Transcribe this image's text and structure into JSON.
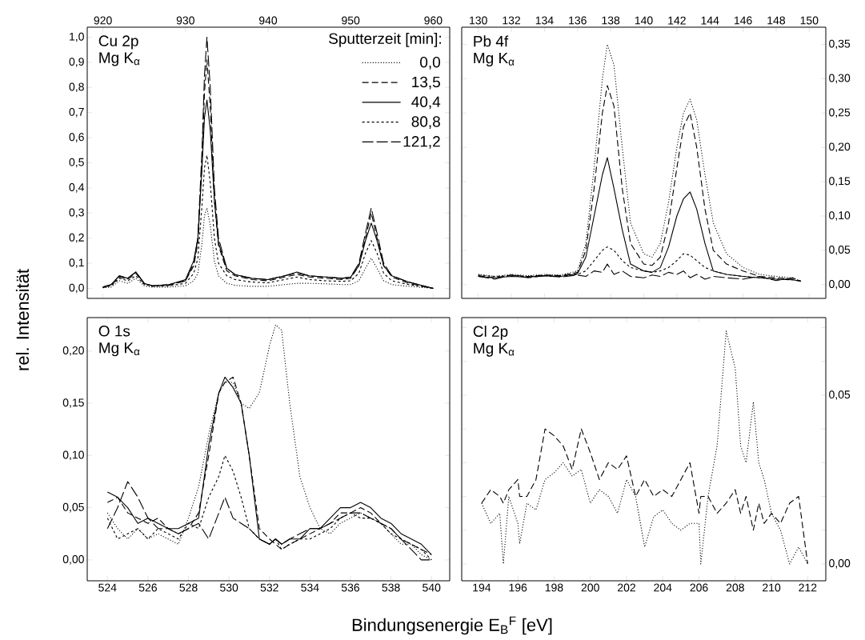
{
  "chart_data": [
    {
      "type": "line",
      "ylabel": "rel. Intensität",
      "annotations": [
        "Cu 2p",
        "Mg K$_{α}$"
      ],
      "legend_title": "Sputterzeit [min]:",
      "legend": "top right",
      "xlim": [
        918.1,
        962.0
      ],
      "ylim": [
        -0.04,
        1.04
      ],
      "xticks": [
        920,
        930,
        940,
        950,
        960
      ],
      "yticks": [
        {
          "value": 0,
          "label": "0,0"
        },
        {
          "value": 0.1,
          "label": "0,1"
        },
        {
          "value": 0.2,
          "label": "0,2"
        },
        {
          "value": 0.3,
          "label": "0,3"
        },
        {
          "value": 0.4,
          "label": "0,4"
        },
        {
          "value": 0.5,
          "label": "0,5"
        },
        {
          "value": 0.6,
          "label": "0,6"
        },
        {
          "value": 0.7,
          "label": "0,7"
        },
        {
          "value": 0.8,
          "label": "0,8"
        },
        {
          "value": 0.9,
          "label": "0,9"
        },
        {
          "value": 1.0,
          "label": "1,0"
        }
      ],
      "x": [
        920,
        921,
        922,
        923,
        924,
        925,
        926,
        928,
        930,
        931,
        931.5,
        932,
        932.3,
        932.6,
        933,
        933.5,
        934,
        935,
        936,
        938,
        940,
        942,
        943.5,
        945,
        947,
        949,
        950,
        951,
        951.8,
        952.5,
        953.2,
        954,
        955,
        957,
        960
      ],
      "series": [
        {
          "name": "0,0",
          "color": "#000000",
          "line_style": "dotted",
          "values": [
            0.002,
            0.005,
            0.03,
            0.02,
            0.04,
            0.01,
            0.005,
            0.005,
            0.01,
            0.03,
            0.06,
            0.18,
            0.29,
            0.32,
            0.25,
            0.11,
            0.05,
            0.02,
            0.012,
            0.008,
            0.008,
            0.015,
            0.02,
            0.02,
            0.018,
            0.015,
            0.015,
            0.03,
            0.08,
            0.12,
            0.08,
            0.03,
            0.015,
            0.008,
            0.0
          ]
        },
        {
          "name": "13,5",
          "color": "#000000",
          "line_style": "dashed",
          "values": [
            0.005,
            0.012,
            0.045,
            0.035,
            0.06,
            0.018,
            0.01,
            0.012,
            0.03,
            0.09,
            0.18,
            0.5,
            0.78,
            0.91,
            0.72,
            0.35,
            0.17,
            0.07,
            0.05,
            0.035,
            0.03,
            0.045,
            0.055,
            0.045,
            0.04,
            0.035,
            0.04,
            0.09,
            0.2,
            0.3,
            0.2,
            0.09,
            0.045,
            0.02,
            0.0
          ]
        },
        {
          "name": "40,4",
          "color": "#000000",
          "line_style": "solid",
          "values": [
            0.005,
            0.015,
            0.05,
            0.04,
            0.065,
            0.02,
            0.01,
            0.015,
            0.035,
            0.11,
            0.2,
            0.48,
            0.68,
            0.75,
            0.63,
            0.35,
            0.18,
            0.08,
            0.055,
            0.04,
            0.035,
            0.05,
            0.065,
            0.05,
            0.045,
            0.04,
            0.045,
            0.09,
            0.19,
            0.26,
            0.19,
            0.09,
            0.05,
            0.025,
            0.0
          ]
        },
        {
          "name": "80,8",
          "color": "#000000",
          "line_style": "dotted",
          "values": [
            0.003,
            0.01,
            0.04,
            0.03,
            0.05,
            0.015,
            0.008,
            0.01,
            0.02,
            0.06,
            0.12,
            0.33,
            0.48,
            0.53,
            0.42,
            0.2,
            0.1,
            0.05,
            0.035,
            0.025,
            0.022,
            0.035,
            0.045,
            0.035,
            0.03,
            0.028,
            0.03,
            0.06,
            0.14,
            0.19,
            0.14,
            0.06,
            0.03,
            0.015,
            0.0
          ]
        },
        {
          "name": "121,2",
          "color": "#000000",
          "line_style": "dashed",
          "values": [
            0.005,
            0.015,
            0.05,
            0.04,
            0.065,
            0.02,
            0.01,
            0.015,
            0.03,
            0.1,
            0.2,
            0.55,
            0.85,
            1.0,
            0.8,
            0.4,
            0.2,
            0.08,
            0.055,
            0.04,
            0.035,
            0.05,
            0.06,
            0.05,
            0.045,
            0.04,
            0.045,
            0.1,
            0.22,
            0.32,
            0.22,
            0.1,
            0.05,
            0.025,
            0.0
          ]
        }
      ]
    },
    {
      "type": "line",
      "annotations": [
        "Pb 4f",
        "Mg K$_{α}$"
      ],
      "xlim": [
        129.0,
        151.0
      ],
      "ylim": [
        -0.02,
        0.375
      ],
      "xticks": [
        130,
        132,
        134,
        136,
        138,
        140,
        142,
        144,
        146,
        148,
        150
      ],
      "yticks": [
        {
          "value": 0,
          "label": "0,00"
        },
        {
          "value": 0.05,
          "label": "0,05"
        },
        {
          "value": 0.1,
          "label": "0,10"
        },
        {
          "value": 0.15,
          "label": "0,15"
        },
        {
          "value": 0.2,
          "label": "0,20"
        },
        {
          "value": 0.25,
          "label": "0,25"
        },
        {
          "value": 0.3,
          "label": "0,30"
        },
        {
          "value": 0.35,
          "label": "0,35"
        }
      ],
      "x": [
        130,
        131,
        132,
        133,
        134,
        135,
        136,
        136.5,
        137,
        137.5,
        137.8,
        138.2,
        138.7,
        139.2,
        140,
        140.5,
        141,
        141.5,
        142,
        142.4,
        142.8,
        143.2,
        143.7,
        144.2,
        145,
        146,
        147,
        148,
        149,
        149.5
      ],
      "series": [
        {
          "color": "#000000",
          "line_style": "dotted",
          "values": [
            0.015,
            0.012,
            0.015,
            0.013,
            0.015,
            0.014,
            0.02,
            0.06,
            0.17,
            0.3,
            0.35,
            0.32,
            0.2,
            0.09,
            0.045,
            0.04,
            0.06,
            0.12,
            0.2,
            0.25,
            0.27,
            0.24,
            0.16,
            0.09,
            0.045,
            0.025,
            0.015,
            0.012,
            0.01,
            0.005
          ]
        },
        {
          "color": "#000000",
          "line_style": "dashed",
          "values": [
            0.013,
            0.01,
            0.014,
            0.012,
            0.014,
            0.013,
            0.018,
            0.05,
            0.14,
            0.25,
            0.29,
            0.26,
            0.14,
            0.06,
            0.03,
            0.028,
            0.04,
            0.09,
            0.17,
            0.23,
            0.25,
            0.2,
            0.11,
            0.05,
            0.03,
            0.02,
            0.012,
            0.01,
            0.008,
            0.005
          ]
        },
        {
          "color": "#000000",
          "line_style": "solid",
          "values": [
            0.012,
            0.01,
            0.012,
            0.011,
            0.013,
            0.012,
            0.016,
            0.04,
            0.1,
            0.16,
            0.185,
            0.14,
            0.08,
            0.03,
            0.02,
            0.018,
            0.025,
            0.055,
            0.1,
            0.125,
            0.135,
            0.11,
            0.06,
            0.02,
            0.015,
            0.012,
            0.01,
            0.008,
            0.007,
            0.005
          ]
        },
        {
          "color": "#000000",
          "line_style": "dotted",
          "values": [
            0.014,
            0.012,
            0.013,
            0.012,
            0.013,
            0.012,
            0.015,
            0.02,
            0.035,
            0.05,
            0.055,
            0.05,
            0.035,
            0.025,
            0.02,
            0.018,
            0.02,
            0.025,
            0.035,
            0.045,
            0.043,
            0.035,
            0.025,
            0.02,
            0.015,
            0.012,
            0.01,
            0.008,
            0.007,
            0.005
          ]
        },
        {
          "color": "#000000",
          "line_style": "dashed",
          "values": [
            0.012,
            0.008,
            0.014,
            0.01,
            0.013,
            0.011,
            0.014,
            0.012,
            0.02,
            0.018,
            0.03,
            0.015,
            0.02,
            0.012,
            0.01,
            0.014,
            0.012,
            0.018,
            0.015,
            0.02,
            0.01,
            0.015,
            0.008,
            0.012,
            0.01,
            0.008,
            0.012,
            0.006,
            0.01,
            0.005
          ]
        }
      ]
    },
    {
      "type": "line",
      "xlabel": "Bindungsenergie E$_{B}$$^{F}$  [eV]",
      "annotations": [
        "O 1s",
        "Mg K$_{α}$"
      ],
      "xlim": [
        523.0,
        540.9
      ],
      "ylim": [
        -0.02,
        0.232
      ],
      "xticks": [
        524,
        526,
        528,
        530,
        532,
        534,
        536,
        538,
        540
      ],
      "yticks": [
        {
          "value": 0,
          "label": "0,00"
        },
        {
          "value": 0.05,
          "label": "0,05"
        },
        {
          "value": 0.1,
          "label": "0,10"
        },
        {
          "value": 0.15,
          "label": "0,15"
        },
        {
          "value": 0.2,
          "label": "0,20"
        }
      ],
      "x": [
        524,
        524.5,
        525,
        525.5,
        526,
        526.5,
        527,
        527.5,
        528,
        528.5,
        529,
        529.5,
        529.8,
        530.2,
        530.6,
        531,
        531.5,
        532,
        532.3,
        532.6,
        533,
        533.5,
        534,
        534.5,
        535,
        535.5,
        536,
        536.5,
        537,
        537.5,
        538,
        538.5,
        539,
        539.5,
        540
      ],
      "series": [
        {
          "color": "#000000",
          "line_style": "dotted",
          "values": [
            0.045,
            0.03,
            0.02,
            0.03,
            0.02,
            0.025,
            0.02,
            0.015,
            0.04,
            0.07,
            0.12,
            0.16,
            0.17,
            0.17,
            0.15,
            0.145,
            0.16,
            0.205,
            0.225,
            0.22,
            0.15,
            0.08,
            0.05,
            0.03,
            0.025,
            0.035,
            0.04,
            0.045,
            0.04,
            0.035,
            0.025,
            0.015,
            0.015,
            0.005,
            0.0
          ]
        },
        {
          "color": "#000000",
          "line_style": "dashed",
          "values": [
            0.055,
            0.06,
            0.045,
            0.04,
            0.035,
            0.04,
            0.03,
            0.025,
            0.03,
            0.045,
            0.1,
            0.16,
            0.17,
            0.175,
            0.15,
            0.1,
            0.03,
            0.02,
            0.015,
            0.01,
            0.015,
            0.02,
            0.025,
            0.03,
            0.035,
            0.045,
            0.045,
            0.05,
            0.045,
            0.035,
            0.03,
            0.02,
            0.015,
            0.01,
            0.005
          ]
        },
        {
          "color": "#000000",
          "line_style": "solid",
          "values": [
            0.065,
            0.06,
            0.05,
            0.035,
            0.04,
            0.035,
            0.03,
            0.03,
            0.035,
            0.04,
            0.11,
            0.16,
            0.175,
            0.165,
            0.15,
            0.1,
            0.02,
            0.015,
            0.02,
            0.015,
            0.02,
            0.02,
            0.03,
            0.03,
            0.04,
            0.05,
            0.05,
            0.055,
            0.05,
            0.04,
            0.035,
            0.025,
            0.02,
            0.015,
            0.005
          ]
        },
        {
          "color": "#000000",
          "line_style": "dotted",
          "values": [
            0.04,
            0.02,
            0.025,
            0.03,
            0.02,
            0.03,
            0.025,
            0.02,
            0.035,
            0.03,
            0.06,
            0.08,
            0.1,
            0.085,
            0.06,
            0.03,
            0.02,
            0.015,
            0.02,
            0.01,
            0.015,
            0.02,
            0.02,
            0.025,
            0.03,
            0.04,
            0.045,
            0.04,
            0.04,
            0.035,
            0.025,
            0.02,
            0.015,
            0.01,
            0.0
          ]
        },
        {
          "color": "#000000",
          "line_style": "dashed",
          "values": [
            0.03,
            0.05,
            0.075,
            0.06,
            0.04,
            0.03,
            0.03,
            0.025,
            0.03,
            0.035,
            0.02,
            0.045,
            0.06,
            0.04,
            0.035,
            0.03,
            0.02,
            0.015,
            0.02,
            0.015,
            0.02,
            0.025,
            0.03,
            0.03,
            0.035,
            0.04,
            0.045,
            0.045,
            0.04,
            0.035,
            0.03,
            0.02,
            0.01,
            0.0,
            0.0
          ]
        }
      ]
    },
    {
      "type": "line",
      "annotations": [
        "Cl 2p",
        "Mg K$_{α}$"
      ],
      "xlim": [
        192.9,
        213.0
      ],
      "ylim": [
        -0.005,
        0.073
      ],
      "xticks": [
        194,
        196,
        198,
        200,
        202,
        204,
        206,
        208,
        210,
        212
      ],
      "yticks": [
        {
          "value": 0,
          "label": "0,00"
        },
        {
          "value": 0.01,
          "label": null
        },
        {
          "value": 0.02,
          "label": null
        },
        {
          "value": 0.03,
          "label": null
        },
        {
          "value": 0.04,
          "label": null
        },
        {
          "value": 0.05,
          "label": "0,05"
        },
        {
          "value": 0.06,
          "label": null
        },
        {
          "value": 0.07,
          "label": null
        }
      ],
      "x": [
        194,
        194.5,
        195,
        195.2,
        195.5,
        196,
        196.1,
        196.5,
        197,
        197.5,
        198,
        198.5,
        199,
        199.5,
        200,
        200.5,
        201,
        201.5,
        202,
        202.5,
        203,
        203.5,
        204,
        204.5,
        205,
        205.5,
        206,
        206.1,
        206.5,
        207,
        207.5,
        208,
        208.3,
        208.6,
        209,
        209.3,
        209.6,
        210,
        210.5,
        211,
        211.5,
        212
      ],
      "series": [
        {
          "color": "#000000",
          "line_style": "dotted",
          "values": [
            0.018,
            0.012,
            0.015,
            0.0,
            0.02,
            0.012,
            0.006,
            0.018,
            0.016,
            0.025,
            0.027,
            0.03,
            0.026,
            0.028,
            0.018,
            0.022,
            0.02,
            0.015,
            0.025,
            0.02,
            0.005,
            0.014,
            0.016,
            0.012,
            0.01,
            0.012,
            0.012,
            0.0,
            0.02,
            0.035,
            0.069,
            0.058,
            0.035,
            0.03,
            0.048,
            0.03,
            0.025,
            0.015,
            0.01,
            0.0,
            0.005,
            0.0
          ]
        },
        {
          "color": "#000000",
          "line_style": "dashed",
          "values": [
            0.018,
            0.022,
            0.02,
            0.018,
            0.022,
            0.025,
            0.02,
            0.02,
            0.025,
            0.04,
            0.038,
            0.035,
            0.028,
            0.04,
            0.033,
            0.025,
            0.03,
            0.028,
            0.032,
            0.02,
            0.025,
            0.02,
            0.022,
            0.02,
            0.025,
            0.03,
            0.015,
            0.02,
            0.02,
            0.015,
            0.018,
            0.022,
            0.015,
            0.02,
            0.01,
            0.018,
            0.012,
            0.015,
            0.012,
            0.018,
            0.02,
            0.0
          ]
        }
      ]
    }
  ]
}
